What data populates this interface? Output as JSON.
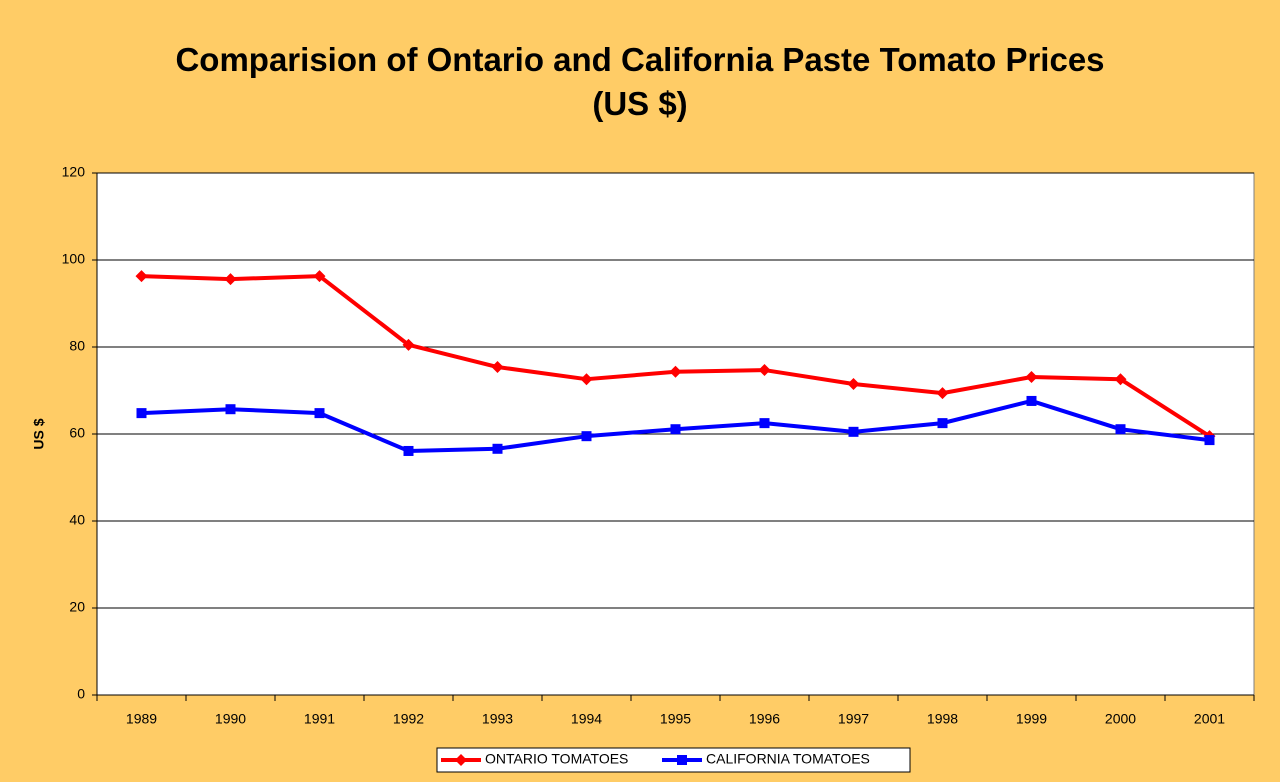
{
  "chart_data": {
    "type": "line",
    "title": "Comparision of Ontario and California Paste Tomato Prices (US $)",
    "ylabel": "US $",
    "categories": [
      "1989",
      "1990",
      "1991",
      "1992",
      "1993",
      "1994",
      "1995",
      "1996",
      "1997",
      "1998",
      "1999",
      "2000",
      "2001"
    ],
    "series": [
      {
        "name": "ONTARIO TOMATOES",
        "color": "#ff0000",
        "marker": "diamond",
        "values": [
          96.3,
          95.6,
          96.3,
          80.5,
          75.4,
          72.6,
          74.3,
          74.7,
          71.5,
          69.4,
          73.1,
          72.6,
          59.5
        ]
      },
      {
        "name": "CALIFORNIA TOMATOES",
        "color": "#0000ff",
        "marker": "square",
        "values": [
          64.8,
          65.7,
          64.8,
          56.1,
          56.6,
          59.5,
          61.1,
          62.5,
          60.5,
          62.5,
          67.6,
          61.1,
          58.6
        ]
      }
    ],
    "ylim": [
      0,
      120
    ],
    "yticks": [
      0,
      20,
      40,
      60,
      80,
      100,
      120
    ],
    "grid": true,
    "legend": "bottom"
  }
}
